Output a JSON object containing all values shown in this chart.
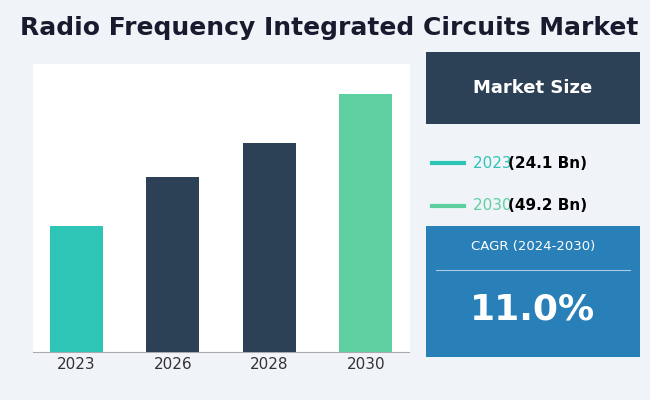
{
  "title": "Radio Frequency Integrated Circuits Market",
  "categories": [
    "2023",
    "2026",
    "2028",
    "2030"
  ],
  "values": [
    24.1,
    33.5,
    40.0,
    49.2
  ],
  "bar_colors": [
    "#2ec4b6",
    "#2d4156",
    "#2d4156",
    "#5ecfa0"
  ],
  "background_color": "#f0f4f8",
  "bar_background": "#ffffff",
  "grid_color": "#d0d8e0",
  "ylim": [
    0,
    55
  ],
  "legend_title": "Market Size",
  "legend_title_bg": "#2d4156",
  "legend_2023_color": "#2ec4b6",
  "legend_2030_color": "#5ecfa0",
  "cagr_label": "CAGR (2024-2030)",
  "cagr_value": "11.0%",
  "cagr_bg": "#2980b9",
  "title_fontsize": 18,
  "tick_fontsize": 11
}
